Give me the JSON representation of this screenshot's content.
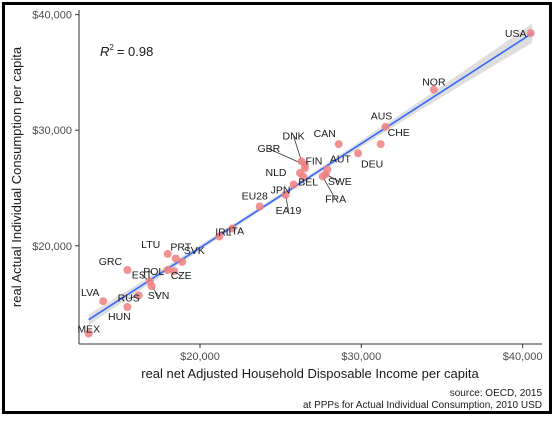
{
  "chart_data": {
    "type": "scatter",
    "xlabel": "real net Adjusted Household Disposable Income per capita",
    "ylabel": "real Actual Individual Consumption per capita",
    "xlim": [
      12500,
      41200
    ],
    "ylim": [
      11500,
      40400
    ],
    "x_ticks": [
      20000,
      30000,
      40000
    ],
    "x_tick_labels": [
      "$20,000",
      "$30,000",
      "$40,000"
    ],
    "y_ticks": [
      20000,
      30000,
      40000
    ],
    "y_tick_labels": [
      "$20,000",
      "$30,000",
      "$40,000"
    ],
    "annotation": {
      "r_label": "R",
      "exp": "2",
      "value": "= 0.98"
    },
    "source_line1": "source: OECD, 2015",
    "source_line2": "at PPPs for Actual Individual Consumption, 2010 USD",
    "fit": {
      "x0": 13100,
      "y0": 13600,
      "x1": 40600,
      "y1": 38400
    },
    "grid": false,
    "point_color": "#f08080",
    "line_color": "#3366ff",
    "band_color": "#d3d3d3",
    "points": [
      {
        "label": "USA",
        "x": 40500,
        "y": 38400
      },
      {
        "label": "NOR",
        "x": 34500,
        "y": 33500
      },
      {
        "label": "AUS",
        "x": 31500,
        "y": 30300
      },
      {
        "label": "CHE",
        "x": 31200,
        "y": 28800
      },
      {
        "label": "CAN",
        "x": 28600,
        "y": 28800
      },
      {
        "label": "DEU",
        "x": 29800,
        "y": 28000
      },
      {
        "label": "AUT",
        "x": 27900,
        "y": 26600
      },
      {
        "label": "SWE",
        "x": 27800,
        "y": 26200
      },
      {
        "label": "FRA",
        "x": 27600,
        "y": 26000
      },
      {
        "label": "DNK",
        "x": 26300,
        "y": 27300
      },
      {
        "label": "GBR",
        "x": 26500,
        "y": 27000
      },
      {
        "label": "FIN",
        "x": 26500,
        "y": 26700
      },
      {
        "label": "NLD",
        "x": 26200,
        "y": 26300
      },
      {
        "label": "BEL",
        "x": 26400,
        "y": 26000
      },
      {
        "label": "JPN",
        "x": 25800,
        "y": 25300
      },
      {
        "label": "EA19",
        "x": 25300,
        "y": 24400
      },
      {
        "label": "EU28",
        "x": 23700,
        "y": 23400
      },
      {
        "label": "ITA",
        "x": 22000,
        "y": 21500
      },
      {
        "label": "IRL",
        "x": 21200,
        "y": 20800
      },
      {
        "label": "SVK",
        "x": 18900,
        "y": 18600
      },
      {
        "label": "PRT",
        "x": 18500,
        "y": 18900
      },
      {
        "label": "LTU",
        "x": 18000,
        "y": 19300
      },
      {
        "label": "POL",
        "x": 18000,
        "y": 17900
      },
      {
        "label": "CZE",
        "x": 18400,
        "y": 17800
      },
      {
        "label": "GRC",
        "x": 15500,
        "y": 17900
      },
      {
        "label": "EST",
        "x": 16900,
        "y": 16900
      },
      {
        "label": "SVN",
        "x": 17000,
        "y": 16500
      },
      {
        "label": "RUS",
        "x": 16200,
        "y": 15700
      },
      {
        "label": "LVA",
        "x": 14000,
        "y": 15200
      },
      {
        "label": "HUN",
        "x": 15500,
        "y": 14700
      },
      {
        "label": "MEX",
        "x": 13100,
        "y": 12400
      }
    ]
  }
}
